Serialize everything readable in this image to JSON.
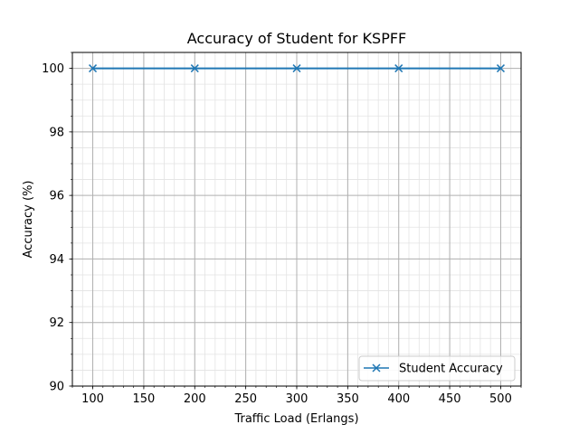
{
  "chart_data": {
    "type": "line",
    "title": "Accuracy of Student for KSPFF",
    "xlabel": "Traffic Load (Erlangs)",
    "ylabel": "Accuracy (%)",
    "xlim": [
      80,
      520
    ],
    "ylim": [
      90,
      100.5
    ],
    "x_ticks": [
      100,
      150,
      200,
      250,
      300,
      350,
      400,
      450,
      500
    ],
    "y_ticks": [
      90,
      92,
      94,
      96,
      98,
      100
    ],
    "x_minor_step": 10,
    "y_minor_step": 0.5,
    "grid": true,
    "legend_position": "lower-right",
    "series": [
      {
        "name": "Student Accuracy",
        "color": "#1f77b4",
        "marker": "x",
        "x": [
          100,
          200,
          300,
          400,
          500
        ],
        "y": [
          100,
          100,
          100,
          100,
          100
        ]
      }
    ]
  }
}
